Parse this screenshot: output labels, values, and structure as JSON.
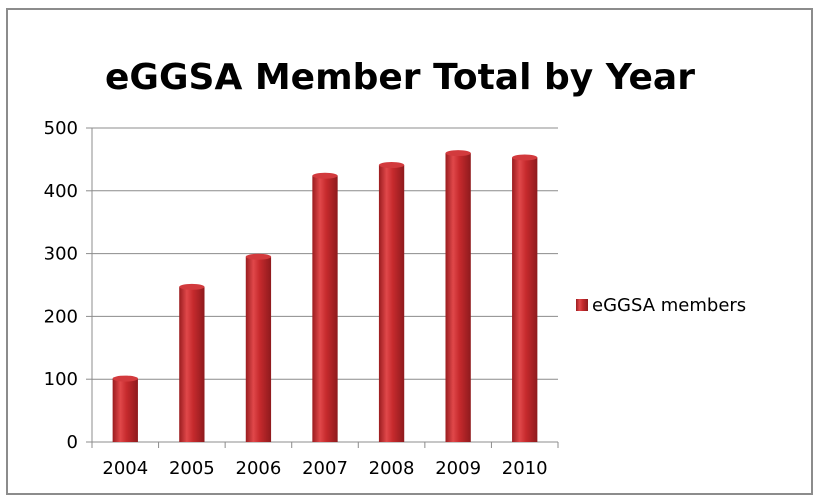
{
  "chart_data": {
    "type": "bar",
    "title": "eGGSA Member Total by Year",
    "categories": [
      "2004",
      "2005",
      "2006",
      "2007",
      "2008",
      "2009",
      "2010"
    ],
    "series": [
      {
        "name": "eGGSA members",
        "values": [
          101,
          247,
          295,
          424,
          441,
          460,
          453
        ],
        "color": "#c0262a"
      }
    ],
    "xlabel": "",
    "ylabel": "",
    "ylim": [
      0,
      500
    ],
    "yticks": [
      "0",
      "100",
      "200",
      "300",
      "400",
      "500"
    ],
    "grid": true,
    "legend": "right"
  }
}
